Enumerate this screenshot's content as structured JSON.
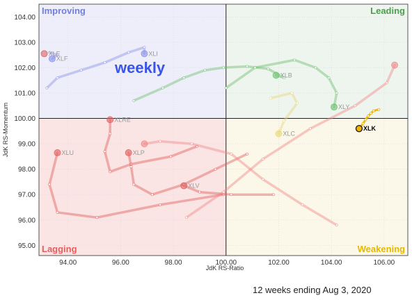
{
  "chart_data": {
    "type": "scatter",
    "subtype": "relative-rotation-graph",
    "title": "weekly",
    "xlabel": "JdK RS-Ratio",
    "ylabel": "JdK RS-Momentum",
    "xlim": [
      92.9,
      106.9
    ],
    "ylim": [
      94.6,
      104.5
    ],
    "x_ticks": [
      "94.00",
      "96.00",
      "98.00",
      "100.00",
      "102.00",
      "104.00",
      "106.00"
    ],
    "y_ticks": [
      "95.00",
      "96.00",
      "97.00",
      "98.00",
      "99.00",
      "100.00",
      "101.00",
      "102.00",
      "103.00",
      "104.00"
    ],
    "center": [
      100,
      100
    ],
    "grid": true,
    "quadrants": {
      "improving": {
        "label": "Improving",
        "color": "#6f7fe0",
        "bg": "#eeeefa"
      },
      "leading": {
        "label": "Leading",
        "color": "#4aa04a",
        "bg": "#eef5ee"
      },
      "weakening": {
        "label": "Weakening",
        "color": "#e6b800",
        "bg": "#fbf8ea"
      },
      "lagging": {
        "label": "Lagging",
        "color": "#e06060",
        "bg": "#fbe4e4"
      }
    },
    "series": [
      {
        "name": "XLI",
        "color": "#8a92e8",
        "labelVisible": "XLI",
        "points": [
          [
            93.2,
            101.2
          ],
          [
            93.6,
            101.6
          ],
          [
            94.5,
            101.9
          ],
          [
            95.4,
            102.2
          ],
          [
            96.3,
            102.6
          ],
          [
            96.9,
            102.8
          ],
          [
            96.9,
            102.55
          ]
        ]
      },
      {
        "name": "XLF",
        "color": "#8a92e8",
        "labelVisible": "XLF",
        "points": [
          [
            93.3,
            102.6
          ],
          [
            93.6,
            102.5
          ],
          [
            93.4,
            102.35
          ]
        ]
      },
      {
        "name": "XLE",
        "color": "#e06060",
        "labelVisible": "XLE",
        "points": [
          [
            93.1,
            102.55
          ]
        ]
      },
      {
        "name": "XLB",
        "color": "#6fbf6f",
        "labelVisible": "XLB",
        "points": [
          [
            96.5,
            100.7
          ],
          [
            97.6,
            101.2
          ],
          [
            98.4,
            101.6
          ],
          [
            99.2,
            101.9
          ],
          [
            99.9,
            102.0
          ],
          [
            100.8,
            102.05
          ],
          [
            101.6,
            101.95
          ],
          [
            102.2,
            101.6
          ],
          [
            101.9,
            101.7
          ]
        ]
      },
      {
        "name": "XLY",
        "color": "#6fbf6f",
        "labelVisible": "XLY",
        "points": [
          [
            100.0,
            101.2
          ],
          [
            101.1,
            102.0
          ],
          [
            102.6,
            102.3
          ],
          [
            103.4,
            102.0
          ],
          [
            103.9,
            101.6
          ],
          [
            104.2,
            101.0
          ],
          [
            104.1,
            100.45
          ]
        ]
      },
      {
        "name": "XLC",
        "color": "#e8d87a",
        "labelVisible": "XLC",
        "points": [
          [
            101.7,
            100.8
          ],
          [
            102.5,
            101.0
          ],
          [
            102.7,
            100.6
          ],
          [
            102.2,
            99.9
          ],
          [
            102.0,
            99.4
          ]
        ]
      },
      {
        "name": "XLRE",
        "color": "#e06060",
        "labelVisible": "XLRE",
        "points": [
          [
            98.9,
            98.9
          ],
          [
            97.9,
            98.5
          ],
          [
            96.4,
            98.2
          ],
          [
            95.6,
            97.9
          ],
          [
            95.4,
            98.7
          ],
          [
            95.6,
            99.4
          ],
          [
            95.6,
            99.95
          ]
        ]
      },
      {
        "name": "XLP",
        "color": "#e06060",
        "labelVisible": "XLP",
        "points": [
          [
            100.8,
            98.6
          ],
          [
            99.6,
            98.0
          ],
          [
            98.4,
            97.4
          ],
          [
            97.2,
            97.0
          ],
          [
            96.5,
            97.4
          ],
          [
            96.4,
            98.1
          ],
          [
            96.3,
            98.65
          ]
        ]
      },
      {
        "name": "XLU",
        "color": "#e06060",
        "labelVisible": "XLU",
        "points": [
          [
            99.9,
            97.0
          ],
          [
            97.5,
            96.6
          ],
          [
            95.1,
            96.1
          ],
          [
            93.6,
            96.3
          ],
          [
            93.3,
            97.4
          ],
          [
            93.6,
            98.65
          ]
        ]
      },
      {
        "name": "XLV",
        "color": "#e06060",
        "labelVisible": "XLV",
        "points": [
          [
            101.8,
            97.0
          ],
          [
            100.2,
            97.0
          ],
          [
            99.0,
            97.1
          ],
          [
            98.4,
            97.35
          ]
        ]
      },
      {
        "name": "XLK",
        "color": "#f0b400",
        "labelVisible": "XLK",
        "points": [
          [
            105.8,
            100.35
          ],
          [
            105.6,
            100.3
          ],
          [
            105.5,
            100.2
          ],
          [
            105.4,
            100.1
          ],
          [
            105.3,
            99.95
          ],
          [
            105.2,
            99.8
          ],
          [
            105.05,
            99.6
          ]
        ]
      },
      {
        "name": "tail-a",
        "color": "#f08a8a",
        "points": [
          [
            104.2,
            95.8
          ],
          [
            102.9,
            96.6
          ],
          [
            101.4,
            97.6
          ],
          [
            100.2,
            98.6
          ],
          [
            98.7,
            99.0
          ],
          [
            97.5,
            99.1
          ],
          [
            96.9,
            99.0
          ]
        ]
      },
      {
        "name": "tail-b",
        "color": "#f08a8a",
        "points": [
          [
            98.5,
            96.1
          ],
          [
            99.9,
            97.1
          ],
          [
            101.4,
            98.4
          ],
          [
            103.2,
            99.6
          ],
          [
            104.9,
            100.5
          ],
          [
            106.1,
            101.4
          ],
          [
            106.4,
            102.1
          ]
        ]
      }
    ]
  },
  "footer": "12 weeks ending Aug 3, 2020"
}
